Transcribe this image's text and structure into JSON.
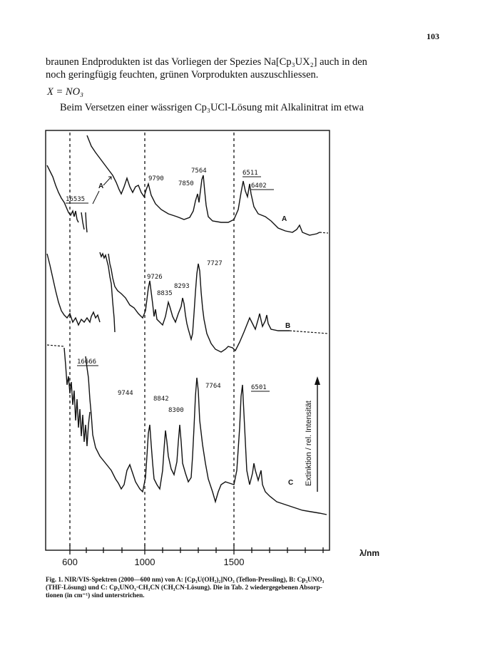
{
  "page_number": "103",
  "para1_line1": "braunen Endprodukten ist das Vorliegen der Spezies Na[Cp₃UX₂] auch in den",
  "para1_line2": "noch geringfügig feuchten, grünen Vorprodukten auszuschliessen.",
  "heading": "X = NO₃",
  "para2_line1": "Beim Versetzen einer wässrigen Cp₃UCl-Lösung mit Alkalinitrat im etwa",
  "figure": {
    "x_tick_labels": [
      "600",
      "1000",
      "1500"
    ],
    "x_unit": "λ/nm",
    "y_label": "Extinktion / rel. Intensität",
    "curve_labels": [
      "A",
      "B",
      "C"
    ],
    "peak_labels_A": [
      "16535",
      "9790",
      "7850",
      "7564",
      "6511",
      "6402"
    ],
    "peak_labels_B": [
      "9726",
      "8835",
      "8293",
      "7727"
    ],
    "peak_labels_C": [
      "16666",
      "9744",
      "8842",
      "8300",
      "7764",
      "6501"
    ]
  },
  "caption_line1": "Fig. 1. NIR/VIS-Spektren (2000—600 nm) von A: [Cp₃U(OH₂)₂]NO₃ (Teflon-Pressling), B: Cp₃UNO₃",
  "caption_line2": "(THF-Lösung) und C: Cp₃UNO₃·CH₃CN (CH₃CN-Lösung). Die in Tab. 2 wiedergegebenen Absorp-",
  "caption_line3": "tionen (in cm⁻¹) sind unterstrichen.",
  "colors": {
    "ink": "#111111",
    "paper": "#ffffff"
  }
}
